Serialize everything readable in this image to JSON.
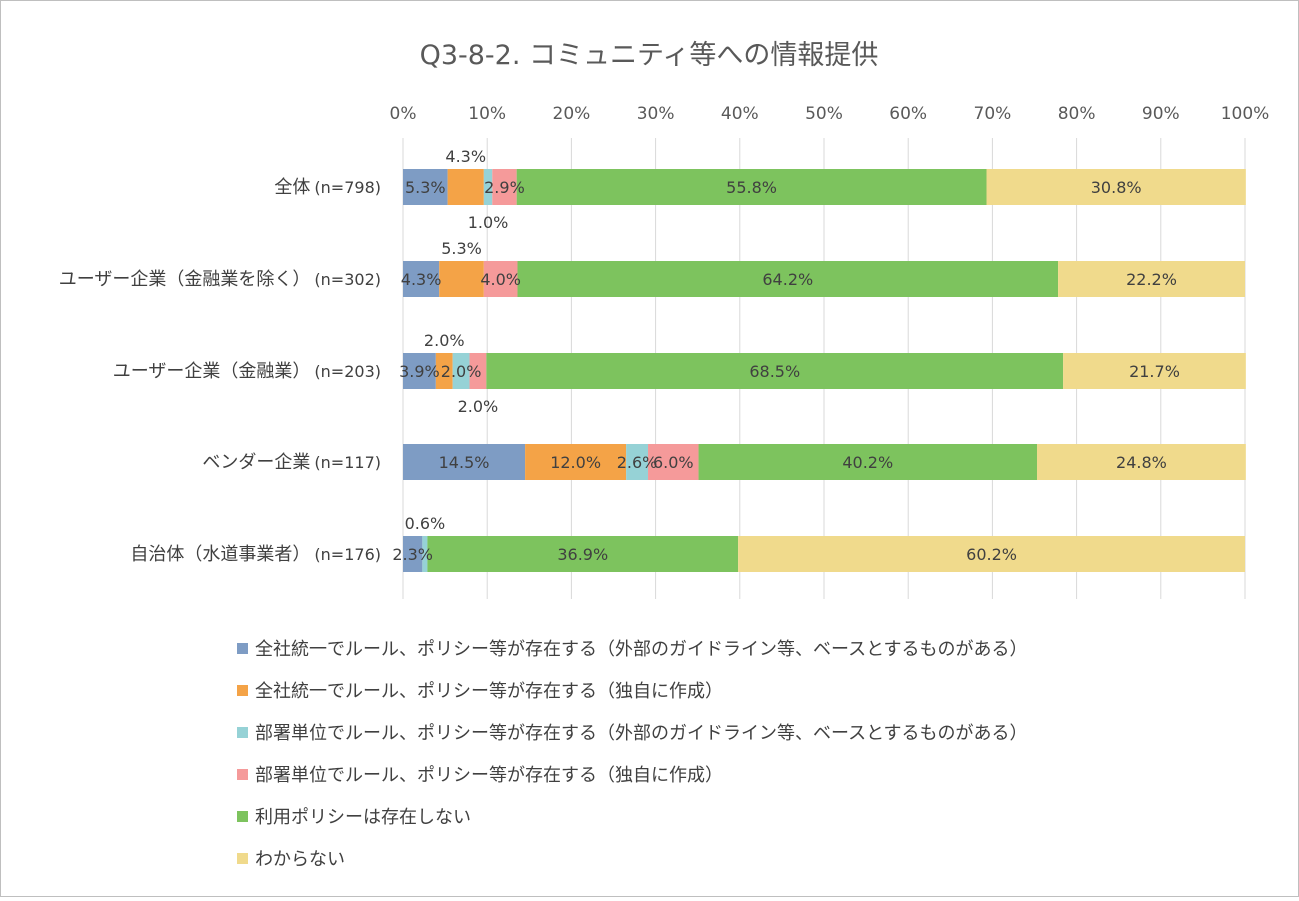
{
  "chart_data": {
    "type": "bar",
    "orientation": "horizontal",
    "stacked": "percent",
    "title": "Q3-8-2. コミュニティ等への情報提供",
    "xlim": [
      0,
      100
    ],
    "x_ticks": [
      "0%",
      "10%",
      "20%",
      "30%",
      "40%",
      "50%",
      "60%",
      "70%",
      "80%",
      "90%",
      "100%"
    ],
    "grid": "vertical",
    "legend_position": "bottom",
    "categories": [
      {
        "label": "全体",
        "n": "(n=798)"
      },
      {
        "label": "ユーザー企業（金融業を除く）",
        "n": "(n=302)"
      },
      {
        "label": "ユーザー企業（金融業）",
        "n": "(n=203)"
      },
      {
        "label": "ベンダー企業",
        "n": "(n=117)"
      },
      {
        "label": "自治体（水道事業者）",
        "n": "(n=176)"
      }
    ],
    "series": [
      {
        "name": "全社統一でルール、ポリシー等が存在する（外部のガイドライン等、ベースとするものがある）",
        "color": "#7e9cc4",
        "values": [
          5.3,
          4.3,
          3.9,
          14.5,
          2.3
        ]
      },
      {
        "name": "全社統一でルール、ポリシー等が存在する（独自に作成）",
        "color": "#f4a347",
        "values": [
          4.3,
          5.3,
          2.0,
          12.0,
          0.0
        ]
      },
      {
        "name": "部署単位でルール、ポリシー等が存在する（外部のガイドライン等、ベースとするものがある）",
        "color": "#96d2d6",
        "values": [
          1.0,
          0.0,
          2.0,
          2.6,
          0.6
        ]
      },
      {
        "name": "部署単位でルール、ポリシー等が存在する（独自に作成）",
        "color": "#f59a9a",
        "values": [
          2.9,
          4.0,
          2.0,
          6.0,
          0.0
        ]
      },
      {
        "name": "利用ポリシーは存在しない",
        "color": "#7dc35e",
        "values": [
          55.8,
          64.2,
          68.5,
          40.2,
          36.9
        ]
      },
      {
        "name": "わからない",
        "color": "#f0da8c",
        "values": [
          30.8,
          22.2,
          21.7,
          24.8,
          60.2
        ]
      }
    ],
    "data_labels": [
      [
        {
          "text": "5.3%",
          "pos": "inside"
        },
        {
          "text": "4.3%",
          "pos": "above"
        },
        {
          "text": "1.0%",
          "pos": "below"
        },
        {
          "text": "2.9%",
          "pos": "inside"
        },
        {
          "text": "55.8%",
          "pos": "inside"
        },
        {
          "text": "30.8%",
          "pos": "inside"
        }
      ],
      [
        {
          "text": "4.3%",
          "pos": "inside"
        },
        {
          "text": "5.3%",
          "pos": "above"
        },
        null,
        {
          "text": "4.0%",
          "pos": "inside"
        },
        {
          "text": "64.2%",
          "pos": "inside"
        },
        {
          "text": "22.2%",
          "pos": "inside"
        }
      ],
      [
        {
          "text": "3.9%",
          "pos": "inside"
        },
        {
          "text": "2.0%",
          "pos": "above"
        },
        {
          "text": "2.0%",
          "pos": "inside"
        },
        {
          "text": "2.0%",
          "pos": "below"
        },
        {
          "text": "68.5%",
          "pos": "inside"
        },
        {
          "text": "21.7%",
          "pos": "inside"
        }
      ],
      [
        {
          "text": "14.5%",
          "pos": "inside"
        },
        {
          "text": "12.0%",
          "pos": "inside"
        },
        {
          "text": "2.6%",
          "pos": "inside"
        },
        {
          "text": "6.0%",
          "pos": "inside"
        },
        {
          "text": "40.2%",
          "pos": "inside"
        },
        {
          "text": "24.8%",
          "pos": "inside"
        }
      ],
      [
        {
          "text": "2.3%",
          "pos": "inside"
        },
        null,
        {
          "text": "0.6%",
          "pos": "above"
        },
        null,
        {
          "text": "36.9%",
          "pos": "inside"
        },
        {
          "text": "60.2%",
          "pos": "inside"
        }
      ]
    ]
  }
}
